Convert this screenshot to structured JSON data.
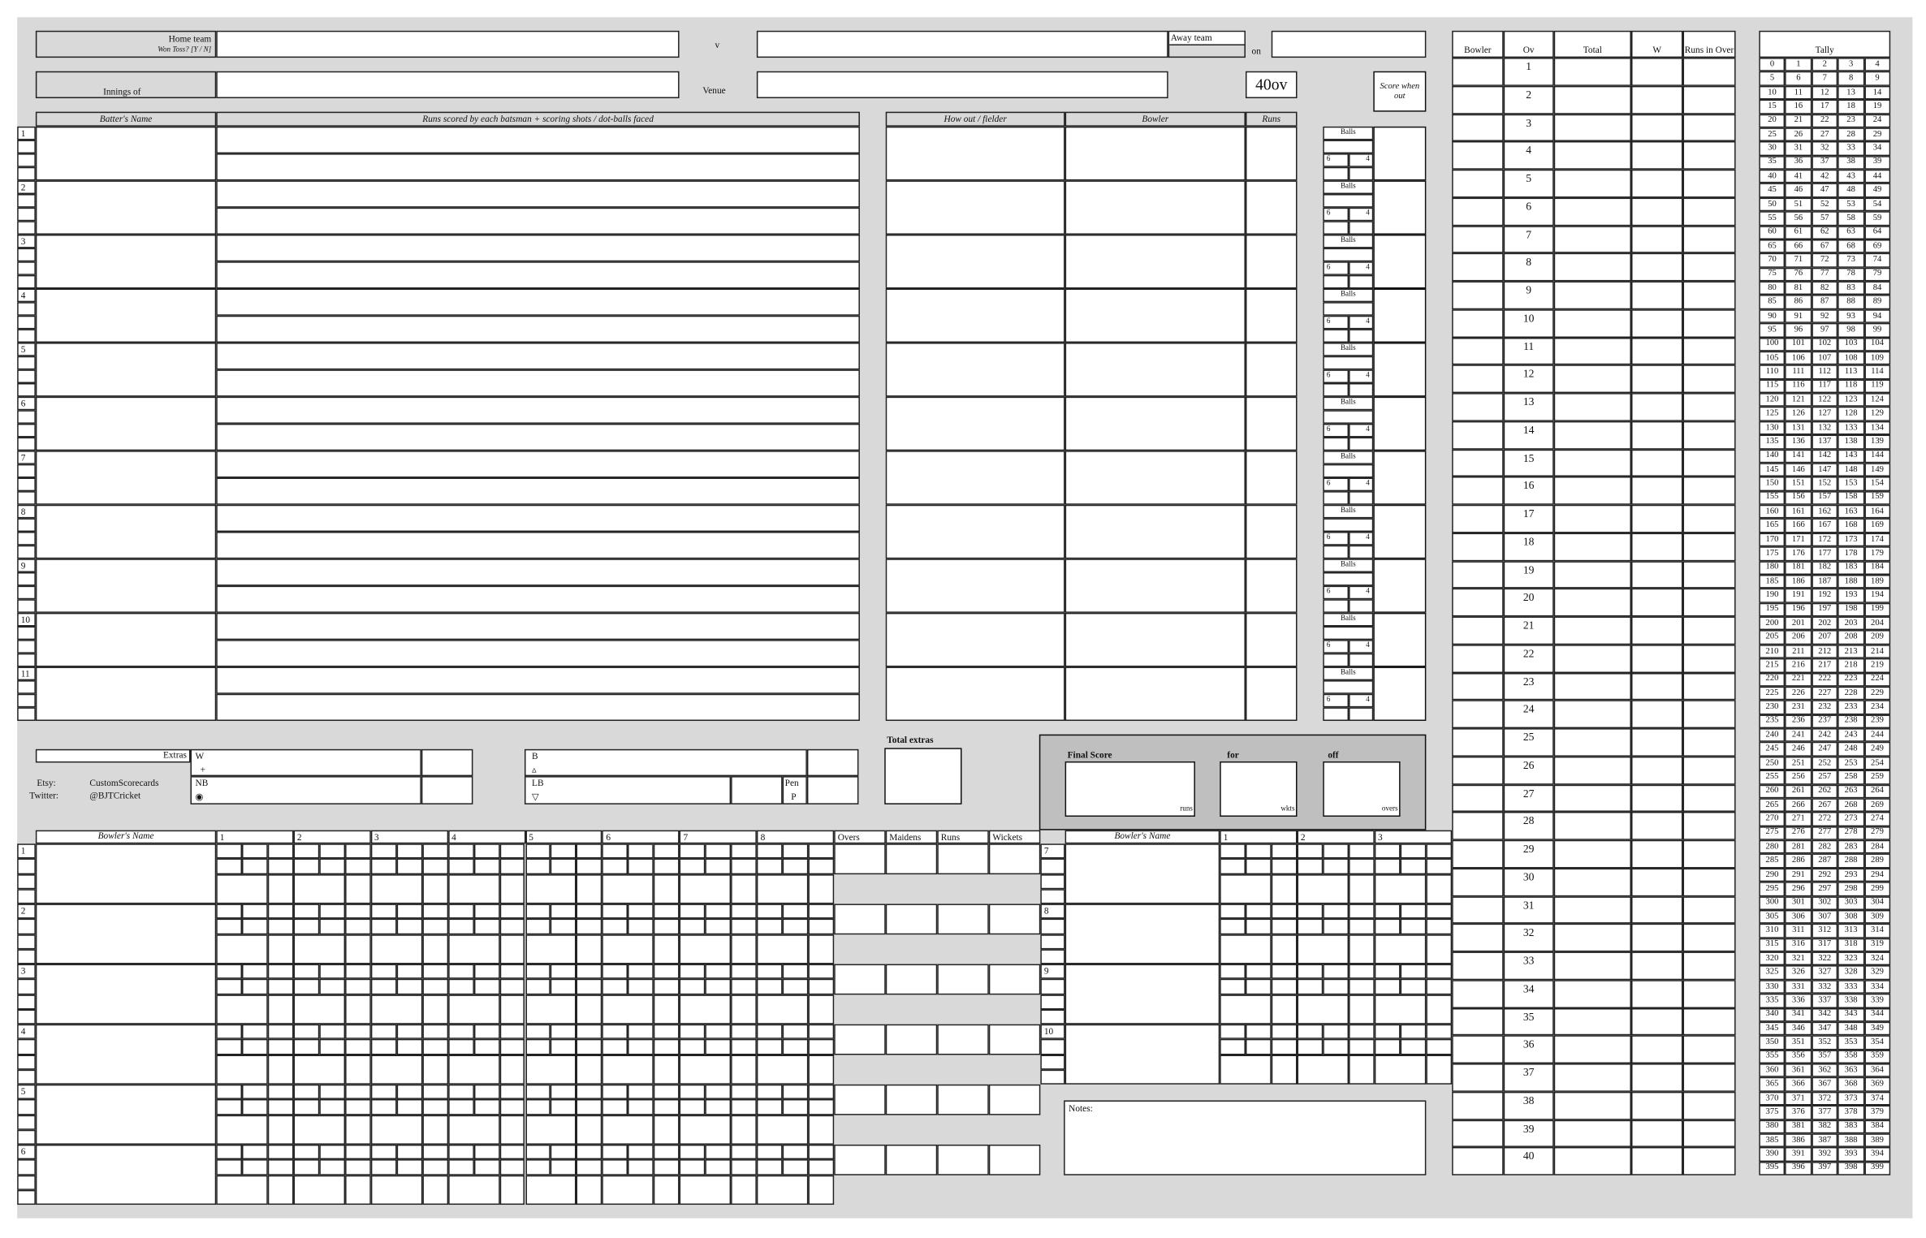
{
  "header": {
    "home_team_label": "Home team",
    "won_toss_label": "Won Toss? [Y / N]",
    "versus": "v",
    "away_team_label": "Away team",
    "on_label": "on",
    "innings_of_label": "Innings of",
    "venue_label": "Venue",
    "format_badge": "40ov",
    "score_when_out_label": "Score when out"
  },
  "batting": {
    "headers": [
      "Batter's Name",
      "Runs scored by each batsman + scoring shots / dot-balls faced"
    ],
    "dismissal_headers": [
      "How out / fielder",
      "Bowler",
      "Runs"
    ],
    "row_numbers": [
      "1",
      "2",
      "3",
      "4",
      "5",
      "6",
      "7",
      "8",
      "9",
      "10",
      "11"
    ],
    "balls_label": "Balls",
    "sixes_label": "6",
    "fours_label": "4"
  },
  "extras": {
    "label": "Extras",
    "wides": "W",
    "wides_symbol": "+",
    "no_balls": "NB",
    "no_balls_symbol": "◉",
    "byes": "B",
    "byes_symbol": "▵",
    "leg_byes": "LB",
    "leg_byes_symbol": "▽",
    "penalty": "Pen",
    "penalty_symbol": "P",
    "total_extras_label": "Total extras"
  },
  "credits": {
    "etsy_label": "Etsy:",
    "etsy_value": "CustomScorecards",
    "twitter_label": "Twitter:",
    "twitter_value": "@BJTCricket"
  },
  "final_score": {
    "title": "Final Score",
    "for_label": "for",
    "off_label": "off",
    "runs_unit": "runs",
    "wkts_unit": "wkts",
    "overs_unit": "overs"
  },
  "bowling": {
    "name_header": "Bowler's Name",
    "over_columns": [
      "1",
      "2",
      "3",
      "4",
      "5",
      "6",
      "7",
      "8"
    ],
    "summary_headers": [
      "Overs",
      "Maidens",
      "Runs",
      "Wickets"
    ],
    "row_numbers": [
      "1",
      "2",
      "3",
      "4",
      "5",
      "6"
    ],
    "extra_row_numbers": [
      "7",
      "8",
      "9",
      "10"
    ],
    "extra_over_columns": [
      "1",
      "2",
      "3"
    ]
  },
  "notes_label": "Notes:",
  "over_table": {
    "headers": [
      "Bowler",
      "Ov",
      "Total",
      "W",
      "Runs in Over"
    ],
    "overs": [
      "1",
      "2",
      "3",
      "4",
      "5",
      "6",
      "7",
      "8",
      "9",
      "10",
      "11",
      "12",
      "13",
      "14",
      "15",
      "16",
      "17",
      "18",
      "19",
      "20",
      "21",
      "22",
      "23",
      "24",
      "25",
      "26",
      "27",
      "28",
      "29",
      "30",
      "31",
      "32",
      "33",
      "34",
      "35",
      "36",
      "37",
      "38",
      "39",
      "40"
    ]
  },
  "tally": {
    "title": "Tally",
    "first_value": 0,
    "last_value": 399,
    "per_row": 5
  },
  "colors": {
    "background": "#d9d9d9",
    "final_score_panel": "#bfbfbf",
    "cell": "#ffffff",
    "line": "#222222"
  }
}
